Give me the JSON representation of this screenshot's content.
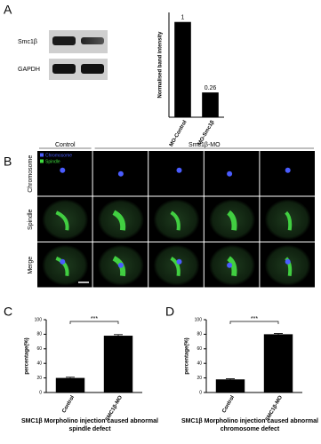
{
  "figure": {
    "panels": [
      "A",
      "B",
      "C",
      "D"
    ],
    "blot": {
      "rows": [
        "Smc1β",
        "GAPDH"
      ]
    },
    "imaging": {
      "columns": [
        "Control",
        "Smc1β-MO"
      ],
      "rows": [
        "Chromosome",
        "Spindle",
        "Merge"
      ],
      "legend": [
        {
          "name": "Chromosome",
          "color": "#4a5cff"
        },
        {
          "name": "Spindle",
          "color": "#3fdc3f"
        }
      ]
    }
  },
  "chart_data": [
    {
      "type": "bar",
      "ylabel": "Normalised band intensity",
      "categories": [
        "MO-Control",
        "MO-Smc1β"
      ],
      "values": [
        1,
        0.26
      ],
      "color": "#000000",
      "ylim": [
        0,
        1.1
      ]
    },
    {
      "type": "bar",
      "title": "SMC1β  Morpholino injection caused abnormal spindle defect",
      "ylabel": "percentage(%)",
      "categories": [
        "Control",
        "SMC1β-MO"
      ],
      "values": [
        20,
        78
      ],
      "errors": [
        1,
        1.5
      ],
      "color": "#000000",
      "ylim": [
        0,
        100
      ],
      "yticks": [
        0,
        20,
        40,
        60,
        80,
        100
      ],
      "annotation": "***"
    },
    {
      "type": "bar",
      "title": "SMC1β Morpholino injection caused abnormal chromosome defect",
      "ylabel": "percentage(%)",
      "categories": [
        "Control",
        "SMC1β-MO"
      ],
      "values": [
        18,
        80
      ],
      "errors": [
        0.8,
        1
      ],
      "color": "#000000",
      "ylim": [
        0,
        100
      ],
      "yticks": [
        0,
        20,
        40,
        60,
        80,
        100
      ],
      "annotation": "***"
    }
  ]
}
